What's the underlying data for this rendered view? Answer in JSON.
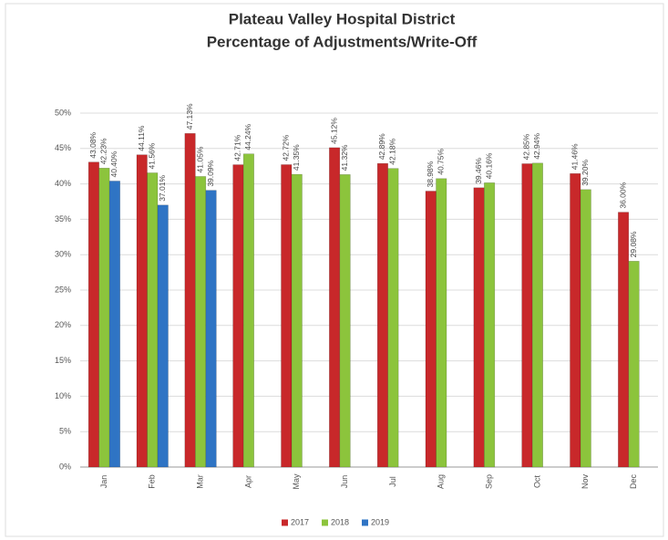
{
  "chart_data": {
    "type": "bar",
    "title": "Plateau Valley Hospital District",
    "subtitle": "Percentage of Adjustments/Write-Off",
    "categories": [
      "Jan",
      "Feb",
      "Mar",
      "Apr",
      "May",
      "Jun",
      "Jul",
      "Aug",
      "Sep",
      "Oct",
      "Nov",
      "Dec"
    ],
    "series": [
      {
        "name": "2017",
        "color": "#c8282a",
        "values": [
          43.08,
          44.11,
          47.13,
          42.71,
          42.72,
          45.12,
          42.89,
          38.98,
          39.46,
          42.85,
          41.46,
          36.0
        ],
        "value_labels": [
          "43.08%",
          "44.11%",
          "47.13%",
          "42.71%",
          "42.72%",
          "45.12%",
          "42.89%",
          "38.98%",
          "39.46%",
          "42.85%",
          "41.46%",
          "36.00%"
        ]
      },
      {
        "name": "2018",
        "color": "#8cc43c",
        "values": [
          42.23,
          41.56,
          41.05,
          44.24,
          41.35,
          41.32,
          42.18,
          40.75,
          40.16,
          42.94,
          39.2,
          29.08
        ],
        "value_labels": [
          "42.23%",
          "41.56%",
          "41.05%",
          "44.24%",
          "41.35%",
          "41.32%",
          "42.18%",
          "40.75%",
          "40.16%",
          "42.94%",
          "39.20%",
          "29.08%"
        ]
      },
      {
        "name": "2019",
        "color": "#2f74c4",
        "values": [
          40.4,
          37.01,
          39.09,
          null,
          null,
          null,
          null,
          null,
          null,
          null,
          null,
          null
        ],
        "value_labels": [
          "40.40%",
          "37.01%",
          "39.09%",
          null,
          null,
          null,
          null,
          null,
          null,
          null,
          null,
          null
        ]
      }
    ],
    "ylim": [
      0,
      50
    ],
    "yticks": [
      {
        "value": 0,
        "label": "0%"
      },
      {
        "value": 5,
        "label": "5%"
      },
      {
        "value": 10,
        "label": "10%"
      },
      {
        "value": 15,
        "label": "15%"
      },
      {
        "value": 20,
        "label": "20%"
      },
      {
        "value": 25,
        "label": "25%"
      },
      {
        "value": 30,
        "label": "30%"
      },
      {
        "value": 35,
        "label": "35%"
      },
      {
        "value": 40,
        "label": "40%"
      },
      {
        "value": 45,
        "label": "45%"
      },
      {
        "value": 50,
        "label": "50%"
      }
    ],
    "grid": true,
    "legend": "bottom"
  }
}
